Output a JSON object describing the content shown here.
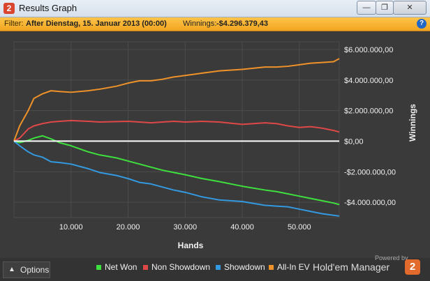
{
  "window": {
    "title": "Results Graph",
    "logo": "2",
    "minimize": "—",
    "restore": "❐",
    "close": "✕"
  },
  "filter": {
    "prefix": "Filter:",
    "name": "After Dienstag, 15. Januar 2013 (00:00)",
    "winnings_label": "Winnings:",
    "winnings_value": "-$4.296.379,43",
    "help": "?"
  },
  "chart_data": {
    "type": "line",
    "xlabel": "Hands",
    "ylabel": "Winnings",
    "xlim": [
      0,
      57000
    ],
    "ylim": [
      -5000000,
      6500000
    ],
    "x_ticks": [
      10000,
      20000,
      30000,
      40000,
      50000
    ],
    "x_tick_labels": [
      "10.000",
      "20.000",
      "30.000",
      "40.000",
      "50.000"
    ],
    "y_ticks": [
      6000000,
      4000000,
      2000000,
      0,
      -2000000,
      -4000000
    ],
    "y_tick_labels": [
      "$6.000.000,00",
      "$4.000.000,00",
      "$2.000.000,00",
      "$0,00",
      "-$2.000.000,00",
      "-$4.000.000,00"
    ],
    "x": [
      0,
      1000,
      2500,
      3500,
      5000,
      6500,
      8000,
      10000,
      13000,
      15000,
      18000,
      20000,
      22000,
      24000,
      26000,
      28000,
      30000,
      33000,
      36000,
      40000,
      44000,
      46000,
      48000,
      50000,
      52000,
      54000,
      56000,
      57000
    ],
    "series": [
      {
        "name": "Net Won",
        "color": "#3ee03e",
        "values": [
          0,
          -100000,
          50000,
          200000,
          350000,
          150000,
          -100000,
          -300000,
          -700000,
          -900000,
          -1100000,
          -1300000,
          -1500000,
          -1700000,
          -1900000,
          -2050000,
          -2200000,
          -2450000,
          -2650000,
          -2950000,
          -3200000,
          -3300000,
          -3450000,
          -3600000,
          -3750000,
          -3900000,
          -4050000,
          -4150000
        ]
      },
      {
        "name": "Non Showdown",
        "color": "#e04848",
        "values": [
          0,
          200000,
          800000,
          1000000,
          1150000,
          1250000,
          1300000,
          1350000,
          1300000,
          1250000,
          1280000,
          1300000,
          1250000,
          1200000,
          1250000,
          1300000,
          1250000,
          1300000,
          1250000,
          1100000,
          1200000,
          1150000,
          1000000,
          900000,
          950000,
          850000,
          700000,
          600000
        ]
      },
      {
        "name": "Showdown",
        "color": "#3399e0",
        "values": [
          0,
          -300000,
          -700000,
          -900000,
          -1050000,
          -1350000,
          -1400000,
          -1500000,
          -1800000,
          -2050000,
          -2250000,
          -2450000,
          -2700000,
          -2800000,
          -3000000,
          -3200000,
          -3350000,
          -3650000,
          -3850000,
          -3950000,
          -4200000,
          -4250000,
          -4300000,
          -4450000,
          -4600000,
          -4750000,
          -4850000,
          -4900000
        ]
      },
      {
        "name": "All-In EV",
        "color": "#f0922a",
        "values": [
          0,
          1000000,
          2000000,
          2800000,
          3100000,
          3300000,
          3250000,
          3200000,
          3300000,
          3400000,
          3600000,
          3800000,
          3950000,
          3950000,
          4050000,
          4200000,
          4300000,
          4450000,
          4600000,
          4700000,
          4850000,
          4850000,
          4900000,
          5000000,
          5100000,
          5150000,
          5200000,
          5400000
        ]
      }
    ],
    "legend": [
      "Net Won",
      "Non Showdown",
      "Showdown",
      "All-In EV"
    ]
  },
  "bottom": {
    "options_label": "Options",
    "options_icon": "chevron-up-icon",
    "powered_by": "Powered by",
    "brand": "Hold'em Manager",
    "brand_logo": "2"
  }
}
